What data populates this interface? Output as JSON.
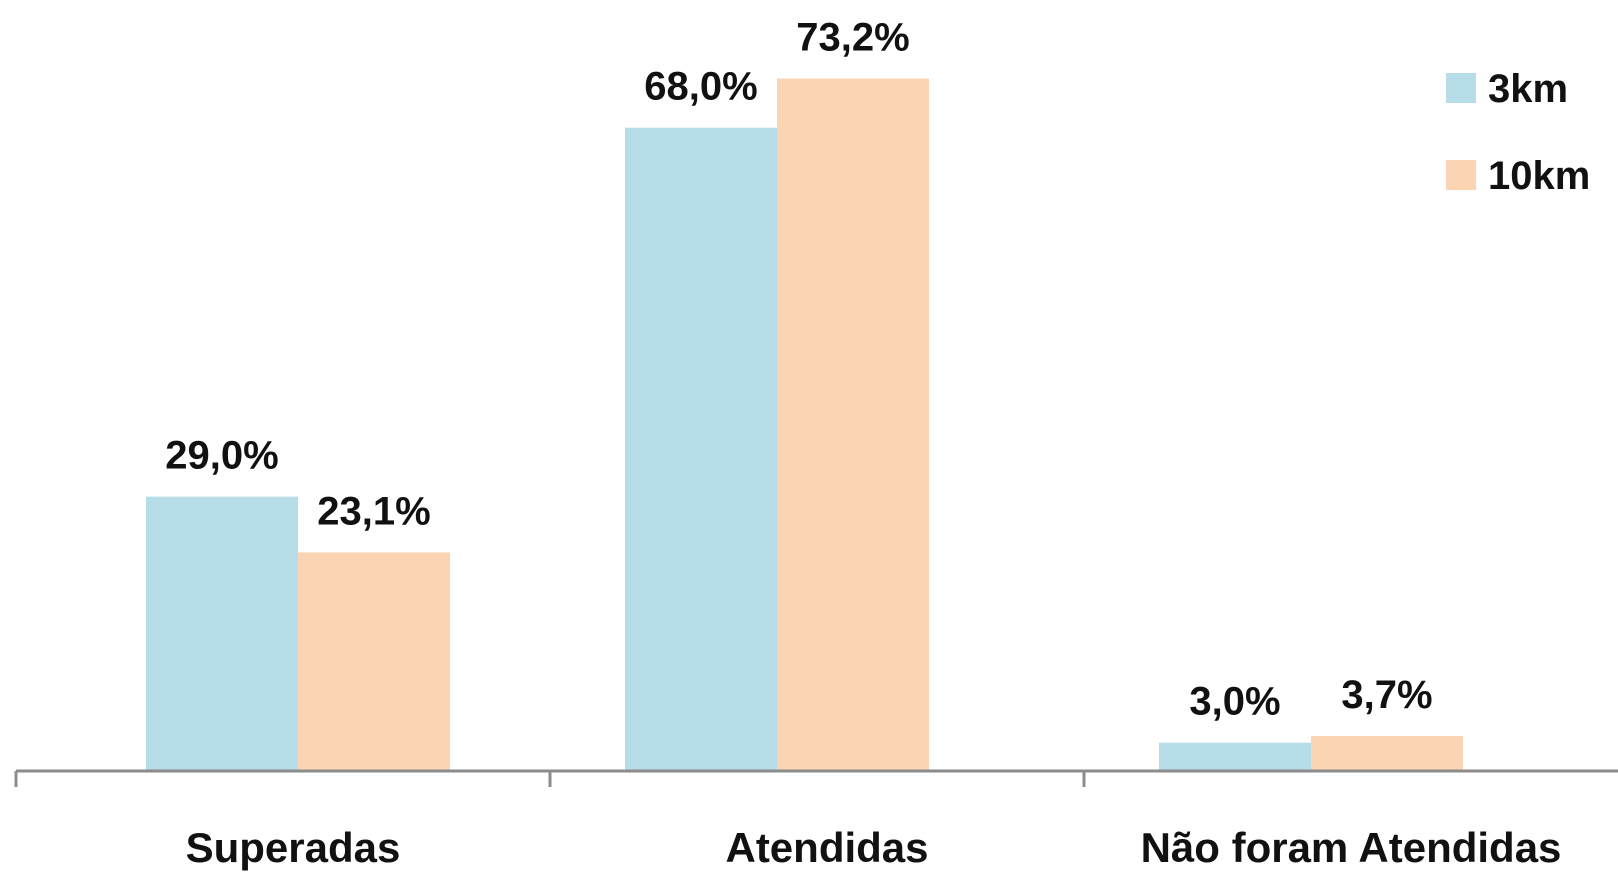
{
  "chart_data": {
    "type": "bar",
    "categories": [
      "Superadas",
      "Atendidas",
      "Não foram Atendidas"
    ],
    "series": [
      {
        "name": "3km",
        "color": "#b7dde8",
        "values": [
          29.0,
          68.0,
          3.0
        ],
        "labels": [
          "29,0%",
          "68,0%",
          "3,0%"
        ]
      },
      {
        "name": "10km",
        "color": "#fbd4b4",
        "values": [
          23.1,
          73.2,
          3.7
        ],
        "labels": [
          "23,1%",
          "73,2%",
          "3,7%"
        ]
      }
    ],
    "title": "",
    "xlabel": "",
    "ylabel": "",
    "ylim": [
      0,
      80
    ],
    "grid": false,
    "legend_position": "top-right",
    "axis_color": "#8c8c8c"
  }
}
